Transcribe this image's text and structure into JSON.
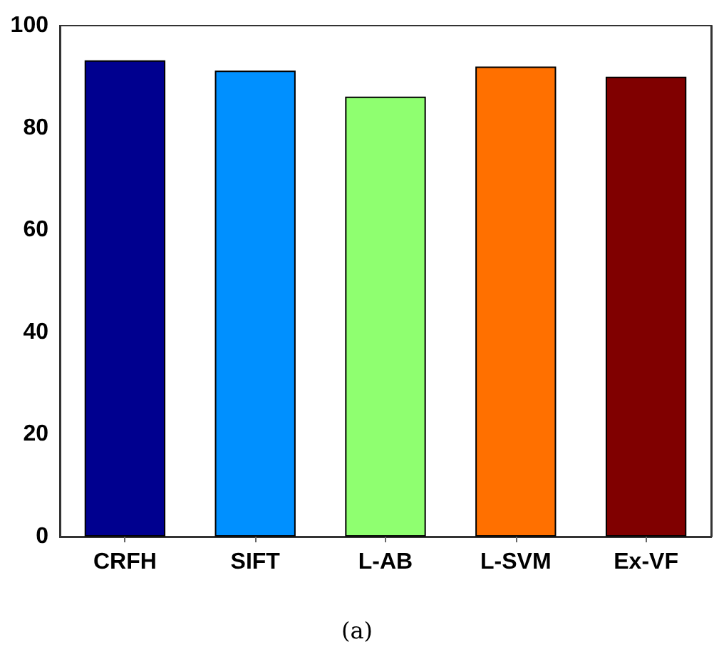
{
  "chart_data": {
    "type": "bar",
    "categories": [
      "CRFH",
      "SIFT",
      "L-AB",
      "L-SVM",
      "Ex-VF"
    ],
    "values": [
      93.2,
      91.2,
      86.1,
      92.0,
      90.0
    ],
    "colors": [
      "#00008f",
      "#0090ff",
      "#8fff70",
      "#ff7000",
      "#800000"
    ],
    "ylim": [
      0,
      100
    ],
    "yticks": [
      0,
      20,
      40,
      60,
      80,
      100
    ],
    "grid": false,
    "annotations": [
      "(a)"
    ]
  }
}
